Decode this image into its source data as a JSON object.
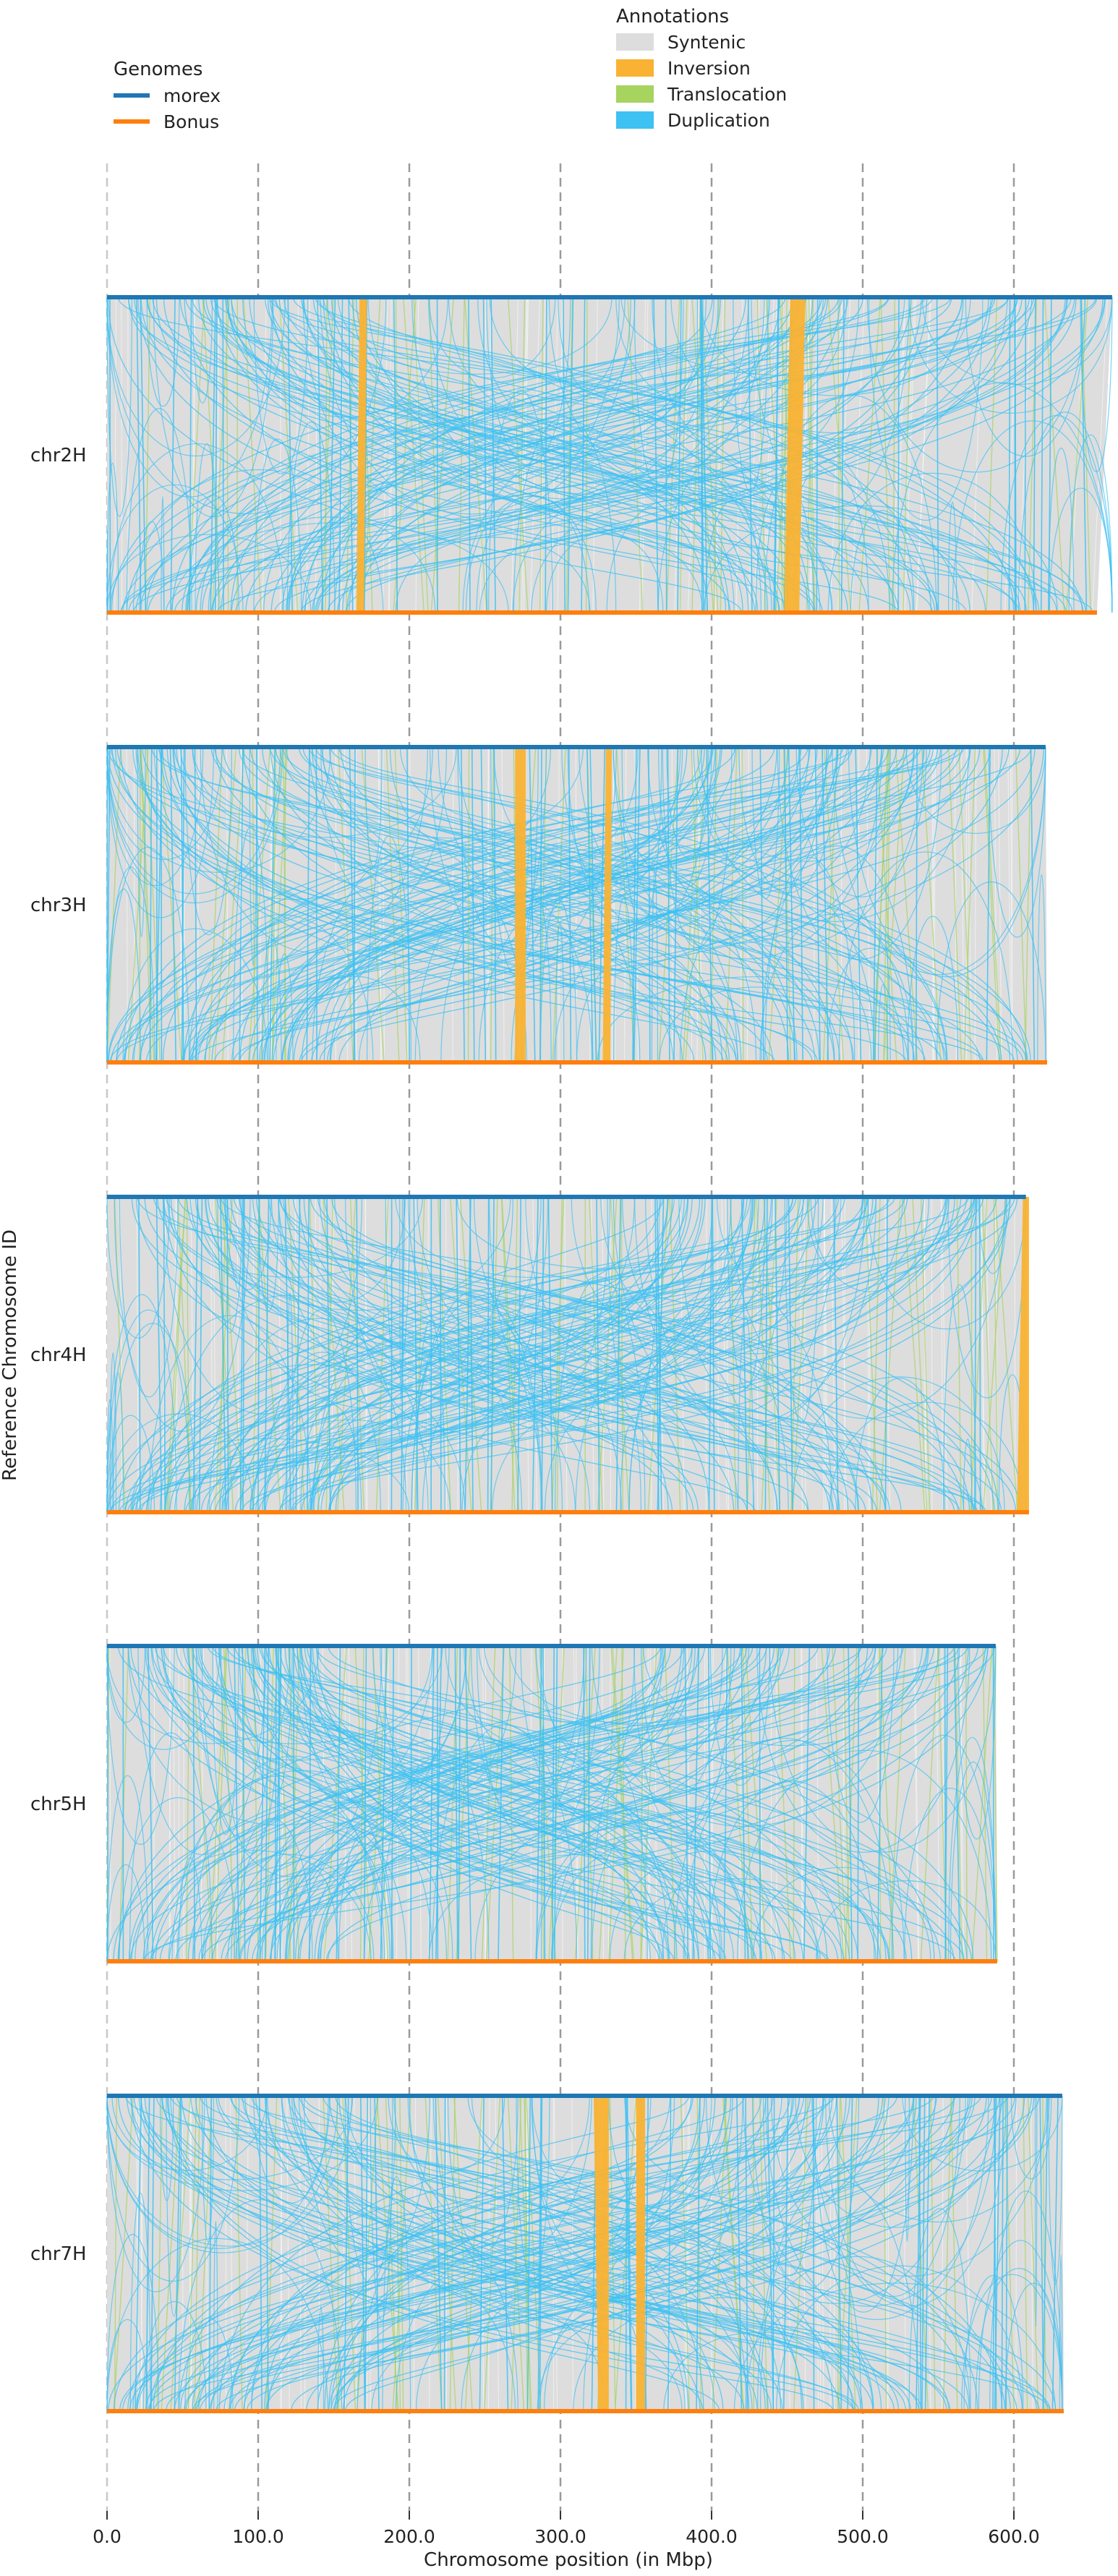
{
  "chart_data": {
    "type": "synteny",
    "xlabel": "Chromosome position (in Mbp)",
    "ylabel": "Reference Chromosome ID",
    "xlim": [
      0,
      672
    ],
    "x_ticks": [
      0,
      100,
      200,
      300,
      400,
      500,
      600
    ],
    "x_tick_labels": [
      "0.0",
      "100.0",
      "200.0",
      "300.0",
      "400.0",
      "500.0",
      "600.0"
    ],
    "grid": "vertical dashed",
    "legends": {
      "genomes": {
        "title": "Genomes",
        "placement": "top-left",
        "items": [
          {
            "label": "morex",
            "color": "#1f77b4"
          },
          {
            "label": "Bonus",
            "color": "#ff7f0e"
          }
        ]
      },
      "annotations": {
        "title": "Annotations",
        "placement": "top-center",
        "items": [
          {
            "label": "Syntenic",
            "color": "#dddddd"
          },
          {
            "label": "Inversion",
            "color": "#f9b233"
          },
          {
            "label": "Translocation",
            "color": "#a7d35f"
          },
          {
            "label": "Duplication",
            "color": "#3ec1f3"
          }
        ]
      }
    },
    "chromosomes": [
      {
        "id": "chr2H",
        "ref_length": 665,
        "qry_length": 655,
        "inversions": [
          [
            167,
            172,
            165,
            170
          ],
          [
            452,
            462,
            448,
            458
          ]
        ]
      },
      {
        "id": "chr3H",
        "ref_length": 621,
        "qry_length": 622,
        "inversions": [
          [
            270,
            277,
            270,
            277
          ],
          [
            330,
            334,
            328,
            333
          ]
        ]
      },
      {
        "id": "chr4H",
        "ref_length": 608,
        "qry_length": 610,
        "inversions": [
          [
            606,
            610,
            602,
            610
          ]
        ]
      },
      {
        "id": "chr5H",
        "ref_length": 588,
        "qry_length": 589,
        "inversions": []
      },
      {
        "id": "chr7H",
        "ref_length": 632,
        "qry_length": 633,
        "inversions": [
          [
            322,
            332,
            325,
            332
          ],
          [
            350,
            356,
            350,
            356
          ]
        ]
      }
    ]
  }
}
